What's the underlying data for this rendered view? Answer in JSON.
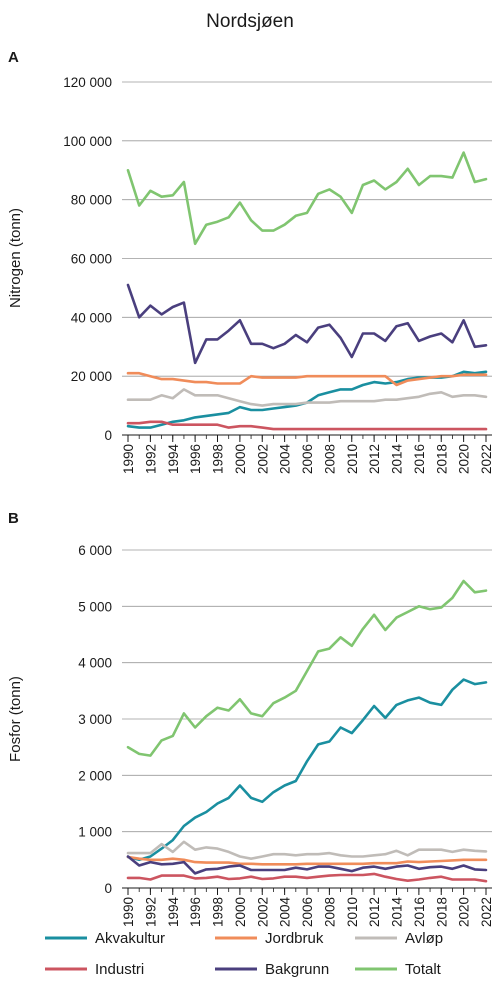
{
  "figure_title": "Nordsjøen",
  "legend": [
    {
      "name": "Akvakultur",
      "color": "#1a8fa0"
    },
    {
      "name": "Jordbruk",
      "color": "#f08c5a"
    },
    {
      "name": "Avløp",
      "color": "#c0bcb8"
    },
    {
      "name": "Industri",
      "color": "#cc5560"
    },
    {
      "name": "Bakgrunn",
      "color": "#4a3f7e"
    },
    {
      "name": "Totalt",
      "color": "#80c570"
    }
  ],
  "chart_data": [
    {
      "panel": "A",
      "type": "line",
      "ylabel": "Nitrogen (tonn)",
      "ylim": [
        0,
        120000
      ],
      "yticks": [
        0,
        20000,
        40000,
        60000,
        80000,
        100000,
        120000
      ],
      "ytick_labels": [
        "0",
        "20 000",
        "40 000",
        "60 000",
        "80 000",
        "100 000",
        "120 000"
      ],
      "xticks": [
        1990,
        1992,
        1994,
        1996,
        1998,
        2000,
        2002,
        2004,
        2006,
        2008,
        2010,
        2012,
        2014,
        2016,
        2018,
        2020,
        2022
      ],
      "xtick_labels": [
        "1990",
        "1992",
        "1994",
        "1996",
        "1998",
        "2000",
        "2002",
        "2004",
        "2006",
        "2008",
        "2010",
        "2012",
        "2014",
        "2016",
        "2018",
        "2020",
        "2022"
      ],
      "x": [
        1990,
        1991,
        1992,
        1993,
        1994,
        1995,
        1996,
        1997,
        1998,
        1999,
        2000,
        2001,
        2002,
        2003,
        2004,
        2005,
        2006,
        2007,
        2008,
        2009,
        2010,
        2011,
        2012,
        2013,
        2014,
        2015,
        2016,
        2017,
        2018,
        2019,
        2020,
        2021,
        2022
      ],
      "series": [
        {
          "name": "Akvakultur",
          "values": [
            3000,
            2500,
            2500,
            3500,
            4500,
            5000,
            6000,
            6500,
            7000,
            7500,
            9500,
            8500,
            8500,
            9000,
            9500,
            10000,
            11000,
            13500,
            14500,
            15500,
            15500,
            17000,
            18000,
            17500,
            18000,
            19000,
            19500,
            19500,
            19500,
            20000,
            21500,
            21000,
            21500
          ]
        },
        {
          "name": "Jordbruk",
          "values": [
            21000,
            21000,
            20000,
            19000,
            19000,
            18500,
            18000,
            18000,
            17500,
            17500,
            17500,
            20000,
            19500,
            19500,
            19500,
            19500,
            20000,
            20000,
            20000,
            20000,
            20000,
            20000,
            20000,
            20000,
            17000,
            18500,
            19000,
            19500,
            20000,
            20000,
            20500,
            20500,
            20500
          ]
        },
        {
          "name": "Avløp",
          "values": [
            12000,
            12000,
            12000,
            13500,
            12500,
            15500,
            13500,
            13500,
            13500,
            12500,
            11500,
            10500,
            10000,
            10500,
            10500,
            10500,
            11000,
            11000,
            11000,
            11500,
            11500,
            11500,
            11500,
            12000,
            12000,
            12500,
            13000,
            14000,
            14500,
            13000,
            13500,
            13500,
            13000
          ]
        },
        {
          "name": "Industri",
          "values": [
            4000,
            4000,
            4500,
            4500,
            3500,
            3500,
            3500,
            3500,
            3500,
            2500,
            3000,
            3000,
            2500,
            2000,
            2000,
            2000,
            2000,
            2000,
            2000,
            2000,
            2000,
            2000,
            2000,
            2000,
            2000,
            2000,
            2000,
            2000,
            2000,
            2000,
            2000,
            2000,
            2000
          ]
        },
        {
          "name": "Bakgrunn",
          "values": [
            51000,
            40000,
            44000,
            41000,
            43500,
            45000,
            24500,
            32500,
            32500,
            35500,
            39000,
            31000,
            31000,
            29500,
            31000,
            34000,
            31500,
            36500,
            37500,
            33000,
            26500,
            34500,
            34500,
            32000,
            37000,
            38000,
            32000,
            33500,
            34500,
            31500,
            39000,
            30000,
            30500
          ]
        },
        {
          "name": "Totalt",
          "values": [
            90000,
            78000,
            83000,
            81000,
            81500,
            86000,
            65000,
            71500,
            72500,
            74000,
            79000,
            73000,
            69500,
            69500,
            71500,
            74500,
            75500,
            82000,
            83500,
            81000,
            75500,
            85000,
            86500,
            83500,
            86000,
            90500,
            85000,
            88000,
            88000,
            87500,
            96000,
            86000,
            87000
          ]
        }
      ]
    },
    {
      "panel": "B",
      "type": "line",
      "ylabel": "Fosfor (tonn)",
      "ylim": [
        0,
        6000
      ],
      "yticks": [
        0,
        1000,
        2000,
        3000,
        4000,
        5000,
        6000
      ],
      "ytick_labels": [
        "0",
        "1 000",
        "2 000",
        "3 000",
        "4 000",
        "5 000",
        "6 000"
      ],
      "xticks": [
        1990,
        1992,
        1994,
        1996,
        1998,
        2000,
        2002,
        2004,
        2006,
        2008,
        2010,
        2012,
        2014,
        2016,
        2018,
        2020,
        2022
      ],
      "xtick_labels": [
        "1990",
        "1992",
        "1994",
        "1996",
        "1998",
        "2000",
        "2002",
        "2004",
        "2006",
        "2008",
        "2010",
        "2012",
        "2014",
        "2016",
        "2018",
        "2020",
        "2022"
      ],
      "x": [
        1990,
        1991,
        1992,
        1993,
        1994,
        1995,
        1996,
        1997,
        1998,
        1999,
        2000,
        2001,
        2002,
        2003,
        2004,
        2005,
        2006,
        2007,
        2008,
        2009,
        2010,
        2011,
        2012,
        2013,
        2014,
        2015,
        2016,
        2017,
        2018,
        2019,
        2020,
        2021,
        2022
      ],
      "series": [
        {
          "name": "Akvakultur",
          "values": [
            550,
            500,
            560,
            700,
            850,
            1100,
            1250,
            1350,
            1500,
            1600,
            1820,
            1600,
            1530,
            1700,
            1820,
            1900,
            2250,
            2550,
            2600,
            2850,
            2750,
            2980,
            3230,
            3020,
            3250,
            3330,
            3380,
            3290,
            3250,
            3520,
            3700,
            3620,
            3650
          ]
        },
        {
          "name": "Jordbruk",
          "values": [
            550,
            520,
            500,
            500,
            520,
            500,
            460,
            450,
            450,
            450,
            430,
            430,
            420,
            420,
            420,
            420,
            430,
            430,
            430,
            430,
            430,
            430,
            440,
            440,
            440,
            470,
            460,
            470,
            480,
            490,
            500,
            500,
            500
          ]
        },
        {
          "name": "Avløp",
          "values": [
            620,
            620,
            620,
            780,
            640,
            820,
            680,
            720,
            700,
            640,
            560,
            520,
            560,
            600,
            600,
            580,
            600,
            600,
            620,
            580,
            560,
            560,
            580,
            600,
            660,
            580,
            680,
            680,
            680,
            640,
            680,
            660,
            650
          ]
        },
        {
          "name": "Industri",
          "values": [
            180,
            180,
            150,
            220,
            220,
            220,
            170,
            180,
            200,
            160,
            170,
            200,
            160,
            170,
            200,
            200,
            180,
            200,
            220,
            230,
            230,
            230,
            250,
            200,
            160,
            130,
            150,
            180,
            200,
            150,
            150,
            150,
            120
          ]
        },
        {
          "name": "Bakgrunn",
          "values": [
            560,
            400,
            460,
            420,
            430,
            460,
            260,
            330,
            340,
            380,
            400,
            320,
            320,
            320,
            320,
            360,
            330,
            380,
            380,
            340,
            300,
            360,
            380,
            340,
            380,
            400,
            340,
            370,
            380,
            340,
            400,
            330,
            320
          ]
        },
        {
          "name": "Totalt",
          "values": [
            2500,
            2380,
            2350,
            2620,
            2700,
            3100,
            2850,
            3050,
            3200,
            3150,
            3350,
            3100,
            3050,
            3280,
            3380,
            3500,
            3850,
            4200,
            4250,
            4450,
            4300,
            4600,
            4850,
            4580,
            4800,
            4900,
            5000,
            4950,
            4980,
            5150,
            5450,
            5250,
            5280
          ]
        }
      ]
    }
  ]
}
